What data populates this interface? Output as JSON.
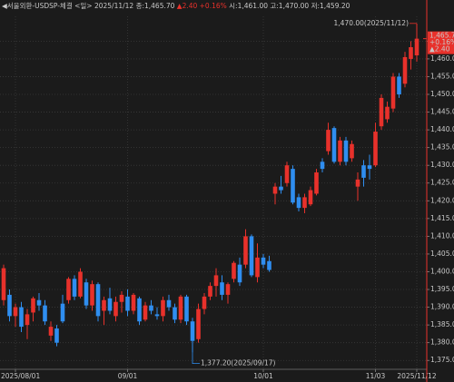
{
  "chart_data": {
    "type": "candlestick",
    "header": {
      "left": "◀서울외환-USDSP-체결 <일> 2025/11/12 종:1,465.70",
      "change": "▲2.40 +0.16%",
      "right": "시:1,461.00 고:1,470.00 저:1,459.20"
    },
    "categories": [
      null,
      null,
      "2025/08/01",
      null,
      null,
      null,
      null,
      null,
      null,
      null,
      null,
      null,
      null,
      null,
      null,
      null,
      null,
      null,
      null,
      null,
      null,
      "09/01",
      null,
      null,
      null,
      null,
      null,
      null,
      null,
      null,
      null,
      null,
      null,
      null,
      null,
      null,
      null,
      null,
      null,
      null,
      null,
      null,
      null,
      null,
      "10/01",
      null,
      null,
      null,
      null,
      null,
      null,
      null,
      null,
      null,
      null,
      null,
      null,
      null,
      null,
      null,
      null,
      null,
      null,
      "11/03",
      null,
      null,
      null,
      null,
      null,
      null,
      "2025/11/12"
    ],
    "open": [
      1392.0,
      1393.5,
      1387.5,
      1390.0,
      1385.0,
      1388.5,
      1392.0,
      1390.5,
      1382.0,
      1384.0,
      1391.0,
      1392.0,
      1398.0,
      1393.0,
      1397.0,
      1390.5,
      1396.5,
      1389.0,
      1392.5,
      1387.5,
      1391.5,
      1393.0,
      1389.0,
      1392.5,
      1386.5,
      1390.5,
      1388.0,
      1387.5,
      1392.0,
      1390.0,
      1386.5,
      1393.0,
      1386.0,
      1381.0,
      1389.5,
      1393.0,
      1396.0,
      1397.0,
      1393.5,
      1398.0,
      1402.0,
      1402.0,
      1410.0,
      1398.5,
      1404.0,
      1403.0,
      1422.0,
      1424.0,
      1425.0,
      1429.0,
      1421.0,
      1418.0,
      1419.0,
      1422.0,
      1431.0,
      1434.0,
      1440.5,
      1431.0,
      1437.0,
      1432.0,
      1424.0,
      1430.0,
      1430.0,
      1430.0,
      1441.0,
      1443.0,
      1446.0,
      1455.0,
      1453.0,
      1460.0,
      1461.0
    ],
    "high": [
      1402.0,
      1395.0,
      1391.0,
      1391.5,
      1389.5,
      1393.0,
      1394.0,
      1392.0,
      1386.0,
      1385.0,
      1393.5,
      1398.5,
      1399.0,
      1401.0,
      1398.0,
      1397.5,
      1397.0,
      1393.0,
      1395.5,
      1393.0,
      1394.5,
      1395.0,
      1394.0,
      1393.0,
      1391.5,
      1392.0,
      1390.0,
      1393.0,
      1393.5,
      1391.0,
      1393.5,
      1393.5,
      1387.0,
      1391.0,
      1394.0,
      1397.0,
      1401.0,
      1399.0,
      1397.0,
      1403.0,
      1404.0,
      1412.0,
      1410.5,
      1408.0,
      1405.0,
      1404.5,
      1425.0,
      1427.0,
      1431.0,
      1430.0,
      1422.0,
      1422.0,
      1424.0,
      1429.0,
      1432.0,
      1442.0,
      1441.0,
      1438.0,
      1438.0,
      1437.0,
      1428.0,
      1431.5,
      1433.0,
      1442.0,
      1450.0,
      1448.0,
      1456.0,
      1456.0,
      1462.0,
      1465.0,
      1470.0
    ],
    "low": [
      1390.5,
      1386.0,
      1384.5,
      1383.0,
      1381.0,
      1386.0,
      1389.0,
      1385.0,
      1380.5,
      1379.0,
      1385.5,
      1391.0,
      1392.0,
      1392.5,
      1389.5,
      1389.0,
      1386.0,
      1385.0,
      1388.0,
      1386.0,
      1388.5,
      1387.5,
      1388.0,
      1385.0,
      1386.0,
      1388.0,
      1386.5,
      1386.0,
      1389.0,
      1385.5,
      1385.5,
      1385.0,
      1377.2,
      1380.0,
      1388.0,
      1392.0,
      1393.0,
      1392.0,
      1391.0,
      1397.0,
      1396.0,
      1401.0,
      1398.5,
      1397.0,
      1401.0,
      1400.0,
      1419.0,
      1422.0,
      1424.0,
      1419.0,
      1417.0,
      1416.5,
      1418.5,
      1421.5,
      1428.0,
      1433.0,
      1430.5,
      1430.0,
      1430.0,
      1431.0,
      1420.0,
      1424.0,
      1426.0,
      1429.5,
      1440.0,
      1442.0,
      1445.0,
      1449.0,
      1452.0,
      1457.0,
      1459.2
    ],
    "close": [
      1401.0,
      1387.5,
      1390.0,
      1384.5,
      1388.0,
      1392.5,
      1390.5,
      1386.0,
      1384.5,
      1380.0,
      1386.0,
      1398.0,
      1393.0,
      1400.0,
      1390.5,
      1396.5,
      1387.5,
      1392.0,
      1389.0,
      1391.5,
      1393.5,
      1389.0,
      1393.5,
      1386.0,
      1390.5,
      1389.0,
      1387.5,
      1392.0,
      1390.0,
      1386.5,
      1393.0,
      1386.0,
      1380.5,
      1389.5,
      1393.0,
      1396.0,
      1399.0,
      1393.5,
      1396.5,
      1402.5,
      1397.0,
      1410.0,
      1399.0,
      1404.0,
      1402.0,
      1400.5,
      1424.0,
      1423.0,
      1430.0,
      1419.5,
      1418.0,
      1421.0,
      1423.0,
      1428.0,
      1429.0,
      1440.0,
      1431.0,
      1437.0,
      1431.0,
      1436.0,
      1426.0,
      1426.5,
      1429.0,
      1439.5,
      1449.0,
      1446.5,
      1455.0,
      1450.0,
      1460.5,
      1463.3,
      1465.7
    ],
    "up_color": "#e8312b",
    "down_color": "#2f8ef0",
    "ylim": [
      1372.5,
      1472
    ],
    "yticks": [
      {
        "value": 1375,
        "label": "1,375.00"
      },
      {
        "value": 1380,
        "label": "1,380.00"
      },
      {
        "value": 1385,
        "label": "1,385.00"
      },
      {
        "value": 1390,
        "label": "1,390.00"
      },
      {
        "value": 1395,
        "label": "1,395.00"
      },
      {
        "value": 1400,
        "label": "1,400.00"
      },
      {
        "value": 1405,
        "label": "1,405.00"
      },
      {
        "value": 1410,
        "label": "1,410.00"
      },
      {
        "value": 1415,
        "label": "1,415.00"
      },
      {
        "value": 1420,
        "label": "1,420.00"
      },
      {
        "value": 1425,
        "label": "1,425.00"
      },
      {
        "value": 1430,
        "label": "1,430.00"
      },
      {
        "value": 1435,
        "label": "1,435.00"
      },
      {
        "value": 1440,
        "label": "1,440.00"
      },
      {
        "value": 1445,
        "label": "1,445.00"
      },
      {
        "value": 1450,
        "label": "1,450.00"
      },
      {
        "value": 1455,
        "label": "1,455.00"
      },
      {
        "value": 1460,
        "label": "1,460.00"
      },
      {
        "value": 1465,
        "label": "1,465.00"
      }
    ],
    "grid": true,
    "max_label": "1,470.00(2025/11/12)",
    "min_label": "1,377.20(2025/09/17)",
    "current": {
      "price": 1465.7,
      "price_label": "1,465.70",
      "pct_label": "+0.16%",
      "change_label": "▲2.40"
    }
  }
}
